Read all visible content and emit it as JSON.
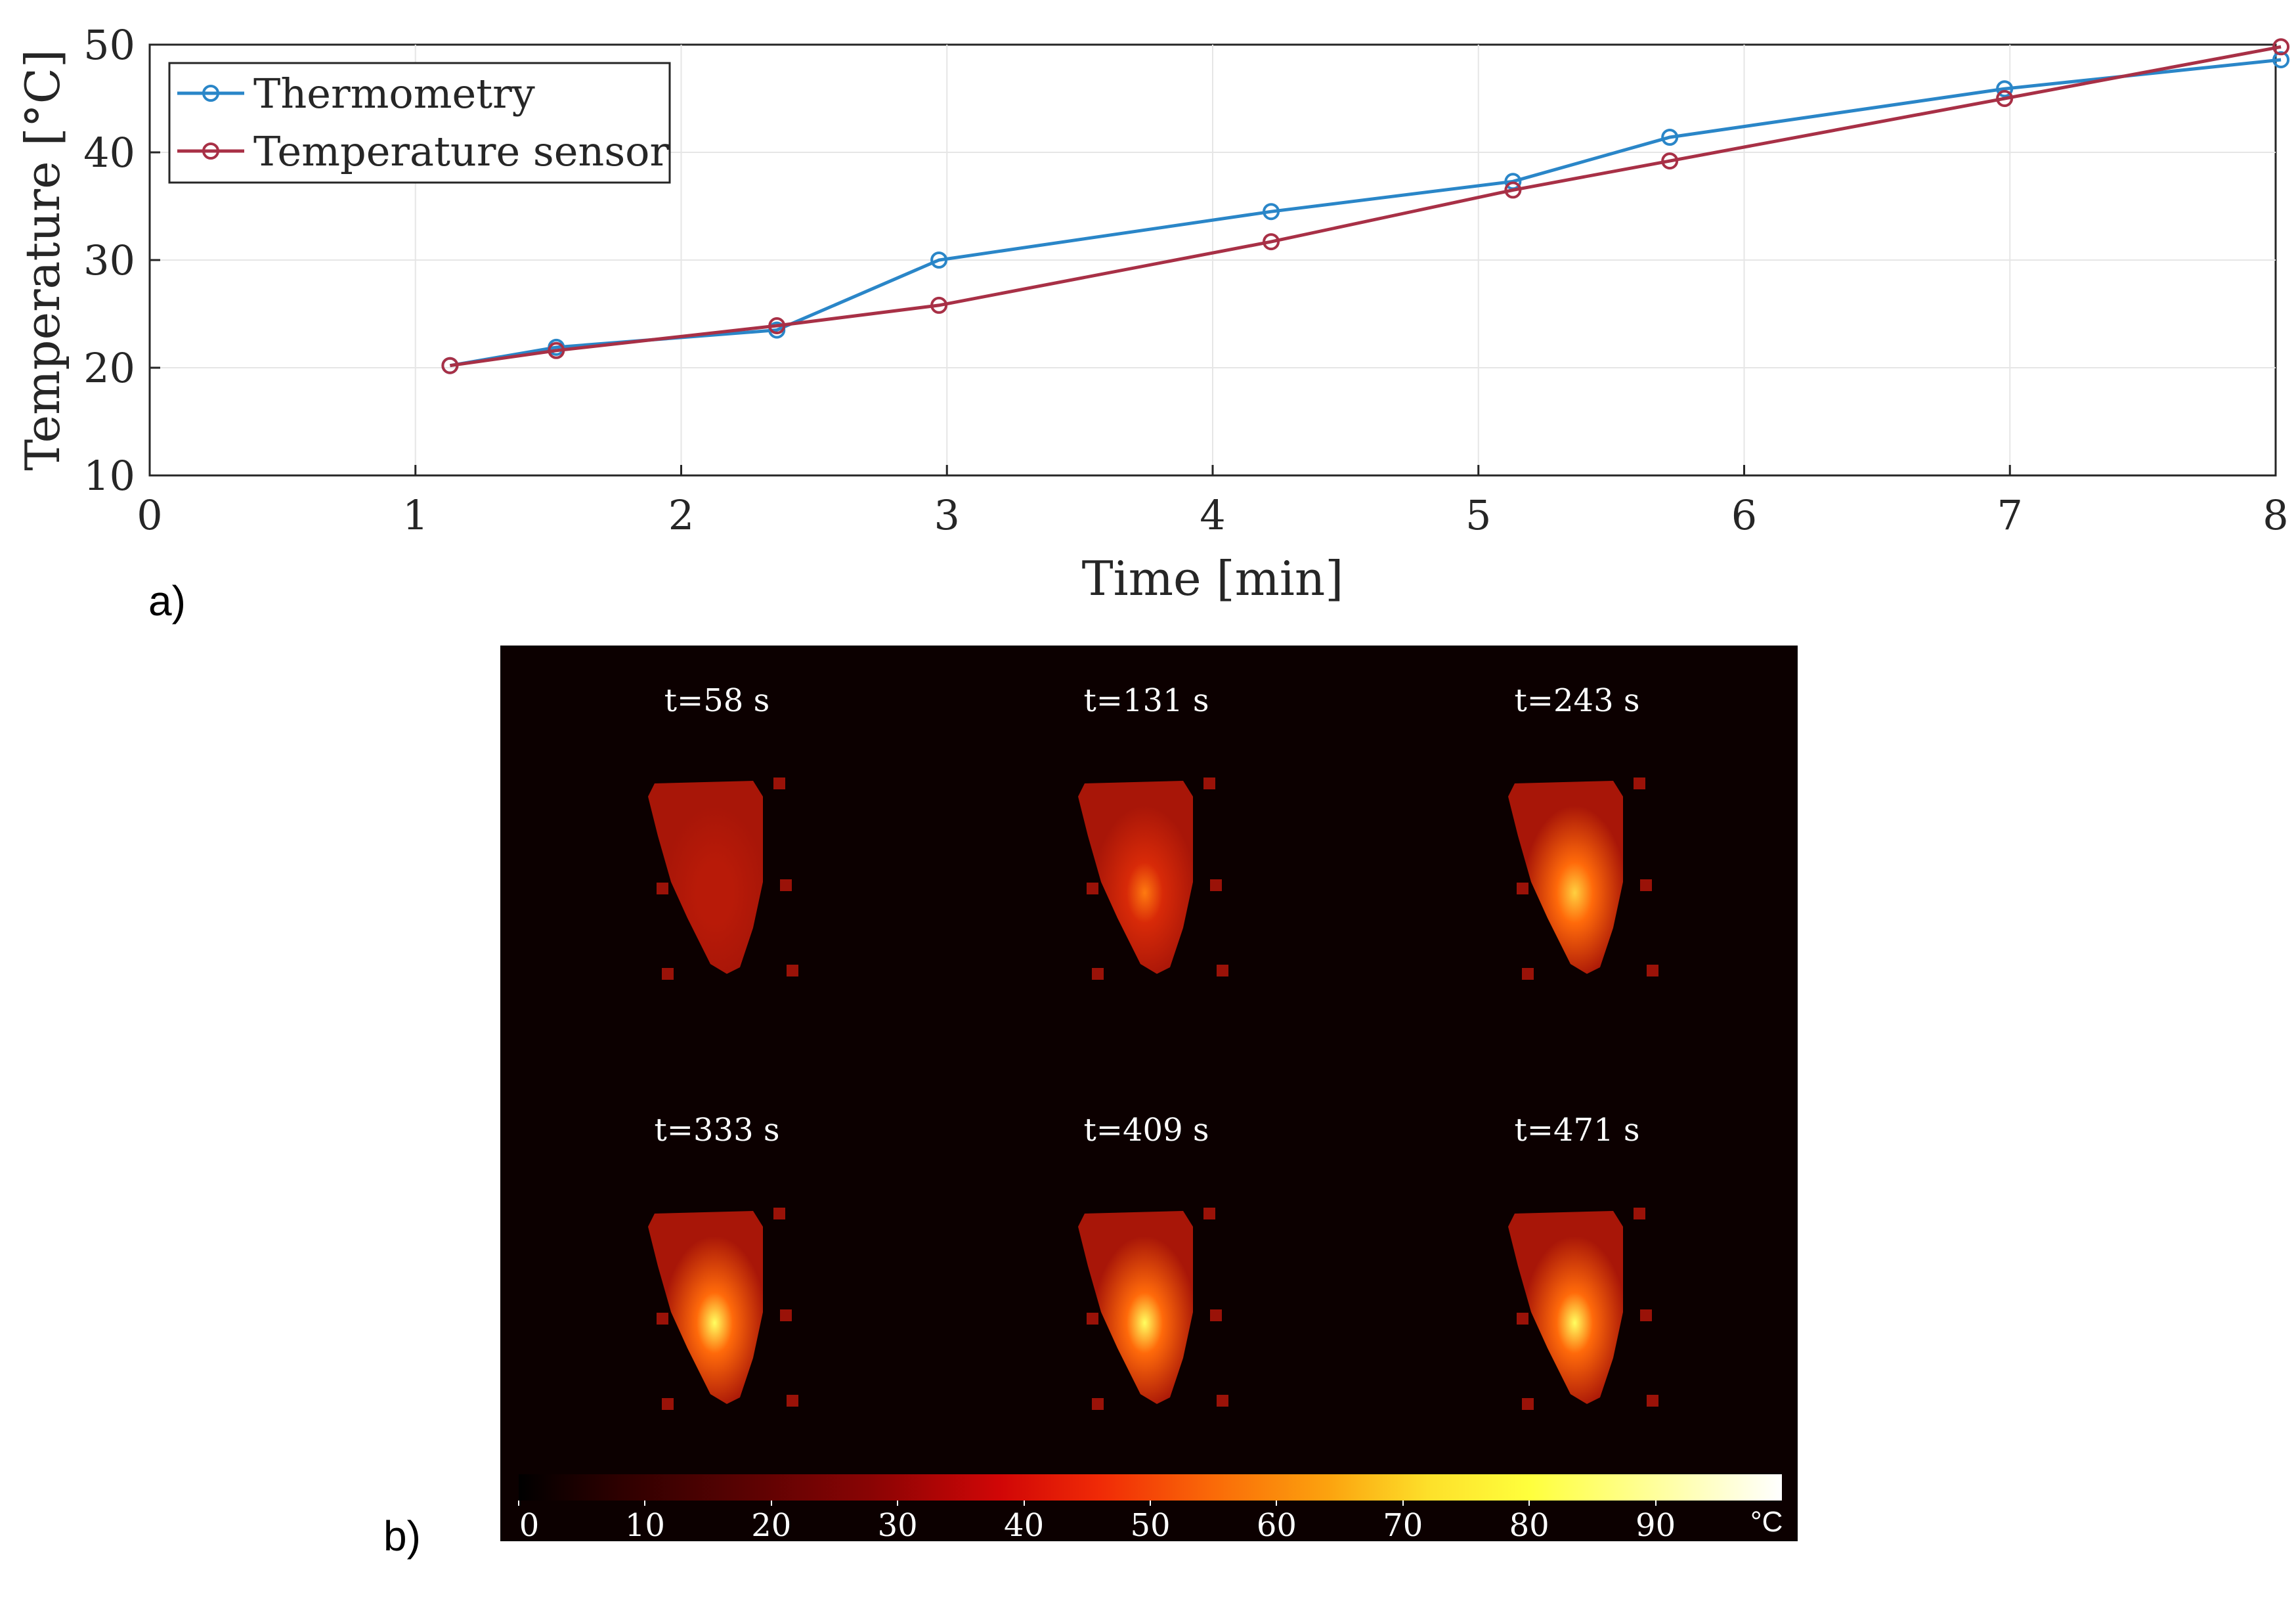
{
  "chart_data": [
    {
      "type": "line",
      "xlabel": "Time [min]",
      "ylabel": "Temperature [°C]",
      "xlim": [
        0,
        8
      ],
      "ylim": [
        10,
        50
      ],
      "xticks": [
        "0",
        "1",
        "2",
        "3",
        "4",
        "5",
        "6",
        "7",
        "8"
      ],
      "yticks": [
        "10",
        "20",
        "30",
        "40",
        "50"
      ],
      "grid": true,
      "legend_position": "top-left",
      "series": [
        {
          "name": "Thermometry",
          "color": "#2a86c8",
          "x": [
            1.13,
            1.53,
            2.36,
            2.97,
            4.22,
            5.13,
            5.72,
            6.98,
            8.02
          ],
          "y": [
            20.2,
            21.9,
            23.5,
            30.0,
            34.5,
            37.3,
            41.4,
            45.9,
            48.6
          ]
        },
        {
          "name": "Temperature sensor",
          "color": "#a83046",
          "x": [
            1.13,
            1.53,
            2.36,
            2.97,
            4.22,
            5.13,
            5.72,
            6.98,
            8.02
          ],
          "y": [
            20.2,
            21.6,
            23.9,
            25.8,
            31.7,
            36.5,
            39.2,
            45.0,
            49.8
          ]
        }
      ]
    },
    {
      "type": "heatmap",
      "frames": [
        "t=58 s",
        "t=131 s",
        "t=243 s",
        "t=333 s",
        "t=409 s",
        "t=471 s"
      ],
      "colorbar": {
        "ticks": [
          "0",
          "10",
          "20",
          "30",
          "40",
          "50",
          "60",
          "70",
          "80",
          "90"
        ],
        "range": [
          0,
          100
        ],
        "unit": "°C"
      }
    }
  ],
  "panels": {
    "a": "a)",
    "b": "b)"
  }
}
